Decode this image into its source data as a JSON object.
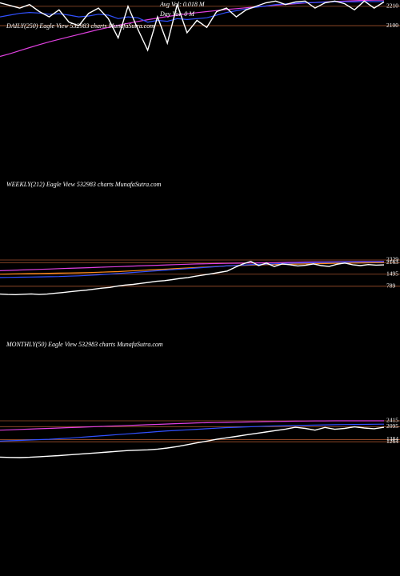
{
  "chart_data": [
    {
      "type": "line",
      "title": "DAILY(250) Eagle  View 532983 charts MunafaSutra.com",
      "annotations": [
        "Avg Vol: 0.018  M",
        "Day Vol: 0  M"
      ],
      "ylim": [
        1290,
        2246
      ],
      "yticks": [
        2210,
        2100
      ],
      "series": [
        {
          "color": "#e040e0",
          "values": [
            1925,
            1940,
            1958,
            1975,
            1992,
            2008,
            2022,
            2036,
            2050,
            2064,
            2078,
            2090,
            2102,
            2113,
            2124,
            2134,
            2143,
            2152,
            2160,
            2167,
            2174,
            2180,
            2186,
            2192,
            2197,
            2202,
            2207,
            2212,
            2217,
            2221,
            2225,
            2229,
            2232,
            2235,
            2238,
            2240,
            2242,
            2244,
            2245,
            2246
          ]
        },
        {
          "color": "#3050ff",
          "values": [
            2150,
            2160,
            2170,
            2175,
            2172,
            2165,
            2168,
            2160,
            2150,
            2155,
            2165,
            2160,
            2140,
            2150,
            2145,
            2120,
            2130,
            2125,
            2140,
            2135,
            2140,
            2145,
            2160,
            2175,
            2185,
            2195,
            2205,
            2212,
            2220,
            2224,
            2228,
            2231,
            2232,
            2234,
            2236,
            2236,
            2235,
            2238,
            2237,
            2238
          ]
        },
        {
          "color": "#ffffff",
          "values": [
            2230,
            2215,
            2200,
            2220,
            2180,
            2150,
            2190,
            2120,
            2100,
            2170,
            2200,
            2140,
            2030,
            2210,
            2080,
            1960,
            2150,
            2000,
            2220,
            2060,
            2130,
            2090,
            2180,
            2200,
            2150,
            2190,
            2210,
            2230,
            2240,
            2220,
            2235,
            2240,
            2200,
            2230,
            2240,
            2225,
            2190,
            2240,
            2200,
            2235
          ]
        }
      ]
    },
    {
      "type": "line",
      "title": "WEEKLY(212) Eagle  View 532983 charts MunafaSutra.com",
      "ylim": [
        -250,
        3500
      ],
      "yticks": [
        2329,
        2163,
        1495,
        789
      ],
      "series": [
        {
          "color": "#e040e0",
          "values": [
            1700,
            1720,
            1740,
            1760,
            1780,
            1800,
            1820,
            1840,
            1860,
            1880,
            1900,
            1920,
            1940,
            1960,
            1980,
            2000,
            2020,
            2040,
            2060,
            2080,
            2100,
            2110,
            2120,
            2130,
            2140,
            2150,
            2160,
            2170,
            2180,
            2190,
            2200,
            2210,
            2215,
            2220,
            2225,
            2230,
            2235,
            2240,
            2245,
            2250
          ]
        },
        {
          "color": "#ff8c1a",
          "values": [
            1500,
            1510,
            1520,
            1530,
            1540,
            1550,
            1560,
            1570,
            1580,
            1590,
            1610,
            1630,
            1650,
            1680,
            1710,
            1740,
            1770,
            1800,
            1830,
            1860,
            1890,
            1920,
            1950,
            1980,
            2000,
            2020,
            2040,
            2055,
            2070,
            2080,
            2090,
            2100,
            2110,
            2120,
            2130,
            2140,
            2150,
            2160,
            2170,
            2175
          ]
        },
        {
          "color": "#3050ff",
          "values": [
            1300,
            1310,
            1320,
            1330,
            1340,
            1350,
            1360,
            1380,
            1400,
            1430,
            1460,
            1500,
            1540,
            1580,
            1620,
            1660,
            1700,
            1740,
            1780,
            1820,
            1860,
            1900,
            1940,
            1980,
            2010,
            2040,
            2070,
            2090,
            2110,
            2130,
            2150,
            2165,
            2180,
            2190,
            2200,
            2210,
            2215,
            2220,
            2225,
            2230
          ]
        },
        {
          "color": "#ffffff",
          "values": [
            330,
            310,
            300,
            320,
            340,
            310,
            330,
            380,
            420,
            470,
            520,
            560,
            620,
            680,
            720,
            800,
            860,
            900,
            960,
            1020,
            1080,
            1120,
            1180,
            1250,
            1300,
            1380,
            1450,
            1520,
            1600,
            1680,
            1900,
            2100,
            2250,
            2000,
            2150,
            1950,
            2100,
            2050,
            1980,
            2020,
            2100,
            2000,
            1950,
            2080,
            2150,
            2050,
            2000,
            2060,
            2030,
            2040
          ]
        }
      ]
    },
    {
      "type": "line",
      "title": "MONTHLY(50) Eagle  View 532983 charts MunafaSutra.com",
      "ylim": [
        -400,
        3560
      ],
      "yticks": [
        2415,
        2095,
        1384,
        1264
      ],
      "series": [
        {
          "color": "#e040e0",
          "values": [
            1900,
            1920,
            1940,
            1960,
            1980,
            2000,
            2020,
            2040,
            2060,
            2080,
            2100,
            2120,
            2140,
            2160,
            2180,
            2200,
            2220,
            2240,
            2260,
            2280,
            2300,
            2310,
            2320,
            2330,
            2340,
            2350,
            2360,
            2370,
            2380,
            2390,
            2400,
            2405,
            2410,
            2412,
            2414,
            2415,
            2415,
            2415,
            2415,
            2415
          ]
        },
        {
          "color": "#3050ff",
          "values": [
            1300,
            1320,
            1340,
            1360,
            1380,
            1400,
            1430,
            1460,
            1500,
            1540,
            1580,
            1620,
            1660,
            1700,
            1740,
            1780,
            1820,
            1860,
            1890,
            1920,
            1950,
            1980,
            2010,
            2040,
            2060,
            2080,
            2100,
            2120,
            2140,
            2150,
            2160,
            2170,
            2180,
            2190,
            2200,
            2210,
            2215,
            2220,
            2225,
            2230
          ]
        },
        {
          "color": "#ffffff",
          "values": [
            420,
            400,
            390,
            410,
            440,
            470,
            500,
            540,
            580,
            620,
            660,
            700,
            740,
            780,
            800,
            820,
            860,
            920,
            1000,
            1100,
            1200,
            1300,
            1400,
            1480,
            1560,
            1640,
            1720,
            1800,
            1880,
            1960,
            2060,
            2000,
            1900,
            2050,
            1950,
            2000,
            2080,
            2020,
            1980,
            2060
          ]
        }
      ]
    }
  ]
}
